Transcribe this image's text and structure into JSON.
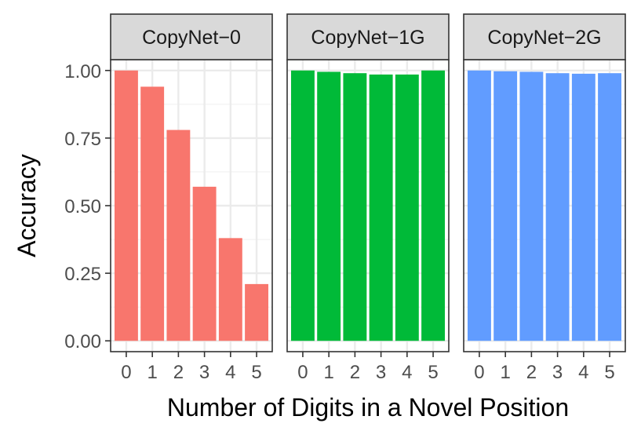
{
  "chart_data": {
    "type": "bar",
    "xlabel": "Number of Digits in a Novel Position",
    "ylabel": "Accuracy",
    "ylim": [
      -0.04,
      1.04
    ],
    "y_ticks": [
      0.0,
      0.25,
      0.5,
      0.75,
      1.0
    ],
    "y_tick_labels": [
      "0.00",
      "0.25",
      "0.50",
      "0.75",
      "1.00"
    ],
    "categories": [
      "0",
      "1",
      "2",
      "3",
      "4",
      "5"
    ],
    "grid": true,
    "legend": "none",
    "panels": [
      {
        "name": "CopyNet−0",
        "color": "#F8766D",
        "values": [
          1.0,
          0.94,
          0.78,
          0.57,
          0.38,
          0.21
        ]
      },
      {
        "name": "CopyNet−1G",
        "color": "#00BA38",
        "values": [
          1.0,
          0.995,
          0.99,
          0.985,
          0.985,
          1.0
        ]
      },
      {
        "name": "CopyNet−2G",
        "color": "#619CFF",
        "values": [
          1.0,
          0.997,
          0.995,
          0.99,
          0.988,
          0.99
        ]
      }
    ]
  }
}
